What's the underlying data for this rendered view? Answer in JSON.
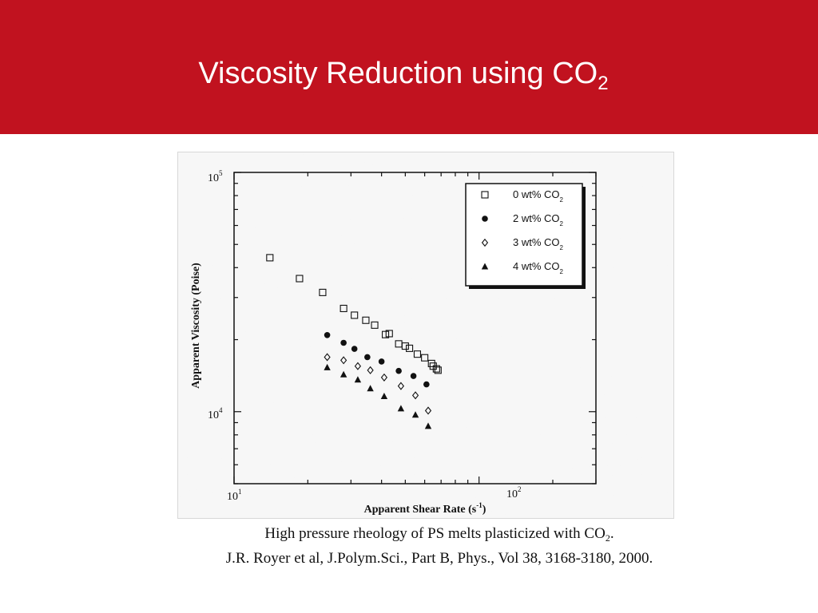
{
  "slide": {
    "title_main": "Viscosity Reduction using CO",
    "title_sub": "2",
    "caption_line1_main": "High pressure rheology of PS melts plasticized with CO",
    "caption_line1_sub": "2",
    "caption_line1_end": ".",
    "caption_line2": "J.R. Royer et al, J.Polym.Sci., Part B, Phys., Vol 38, 3168-3180, 2000."
  },
  "colors": {
    "header_bg": "#c1121f",
    "title_text": "#ffffff",
    "ink": "#111111"
  },
  "chart_data": {
    "type": "scatter",
    "xlabel_main": "Apparent Shear Rate (s",
    "xlabel_sup": "-1",
    "xlabel_end": ")",
    "ylabel": "Apparent Viscosity (Poise)",
    "x_scale": "log",
    "y_scale": "log",
    "xlim": [
      10,
      300
    ],
    "ylim": [
      5000,
      100000
    ],
    "x_ticks": [
      {
        "base": "10",
        "exp": "1",
        "value": 10
      },
      {
        "base": "10",
        "exp": "2",
        "value": 100
      }
    ],
    "y_ticks": [
      {
        "base": "10",
        "exp": "4",
        "value": 10000
      },
      {
        "base": "10",
        "exp": "5",
        "value": 100000
      }
    ],
    "grid": false,
    "legend_position": "top-right",
    "series": [
      {
        "name": "0 wt% CO",
        "name_sub": "2",
        "marker": "open-square",
        "x": [
          14,
          18.5,
          23,
          28,
          31,
          34.5,
          37.5,
          41.5,
          43,
          47,
          50,
          52,
          56,
          60,
          64,
          65,
          67,
          68
        ],
        "y": [
          44000,
          36000,
          31500,
          27000,
          25300,
          24100,
          23000,
          21000,
          21200,
          19200,
          18800,
          18400,
          17400,
          16800,
          15900,
          15500,
          15100,
          14900
        ]
      },
      {
        "name": "2 wt% CO",
        "name_sub": "2",
        "marker": "filled-circle",
        "x": [
          24,
          28,
          31,
          35,
          40,
          47,
          54,
          61
        ],
        "y": [
          20900,
          19400,
          18300,
          16900,
          16200,
          14800,
          14100,
          13000
        ]
      },
      {
        "name": "3 wt% CO",
        "name_sub": "2",
        "marker": "open-diamond",
        "x": [
          24,
          28,
          32,
          36,
          41,
          48,
          55,
          62
        ],
        "y": [
          16900,
          16400,
          15500,
          14900,
          13900,
          12800,
          11700,
          10100
        ]
      },
      {
        "name": "4 wt% CO",
        "name_sub": "2",
        "marker": "filled-triangle",
        "x": [
          24,
          28,
          32,
          36,
          41,
          48,
          55,
          62
        ],
        "y": [
          15300,
          14300,
          13600,
          12500,
          11600,
          10300,
          9700,
          8700
        ]
      }
    ]
  }
}
